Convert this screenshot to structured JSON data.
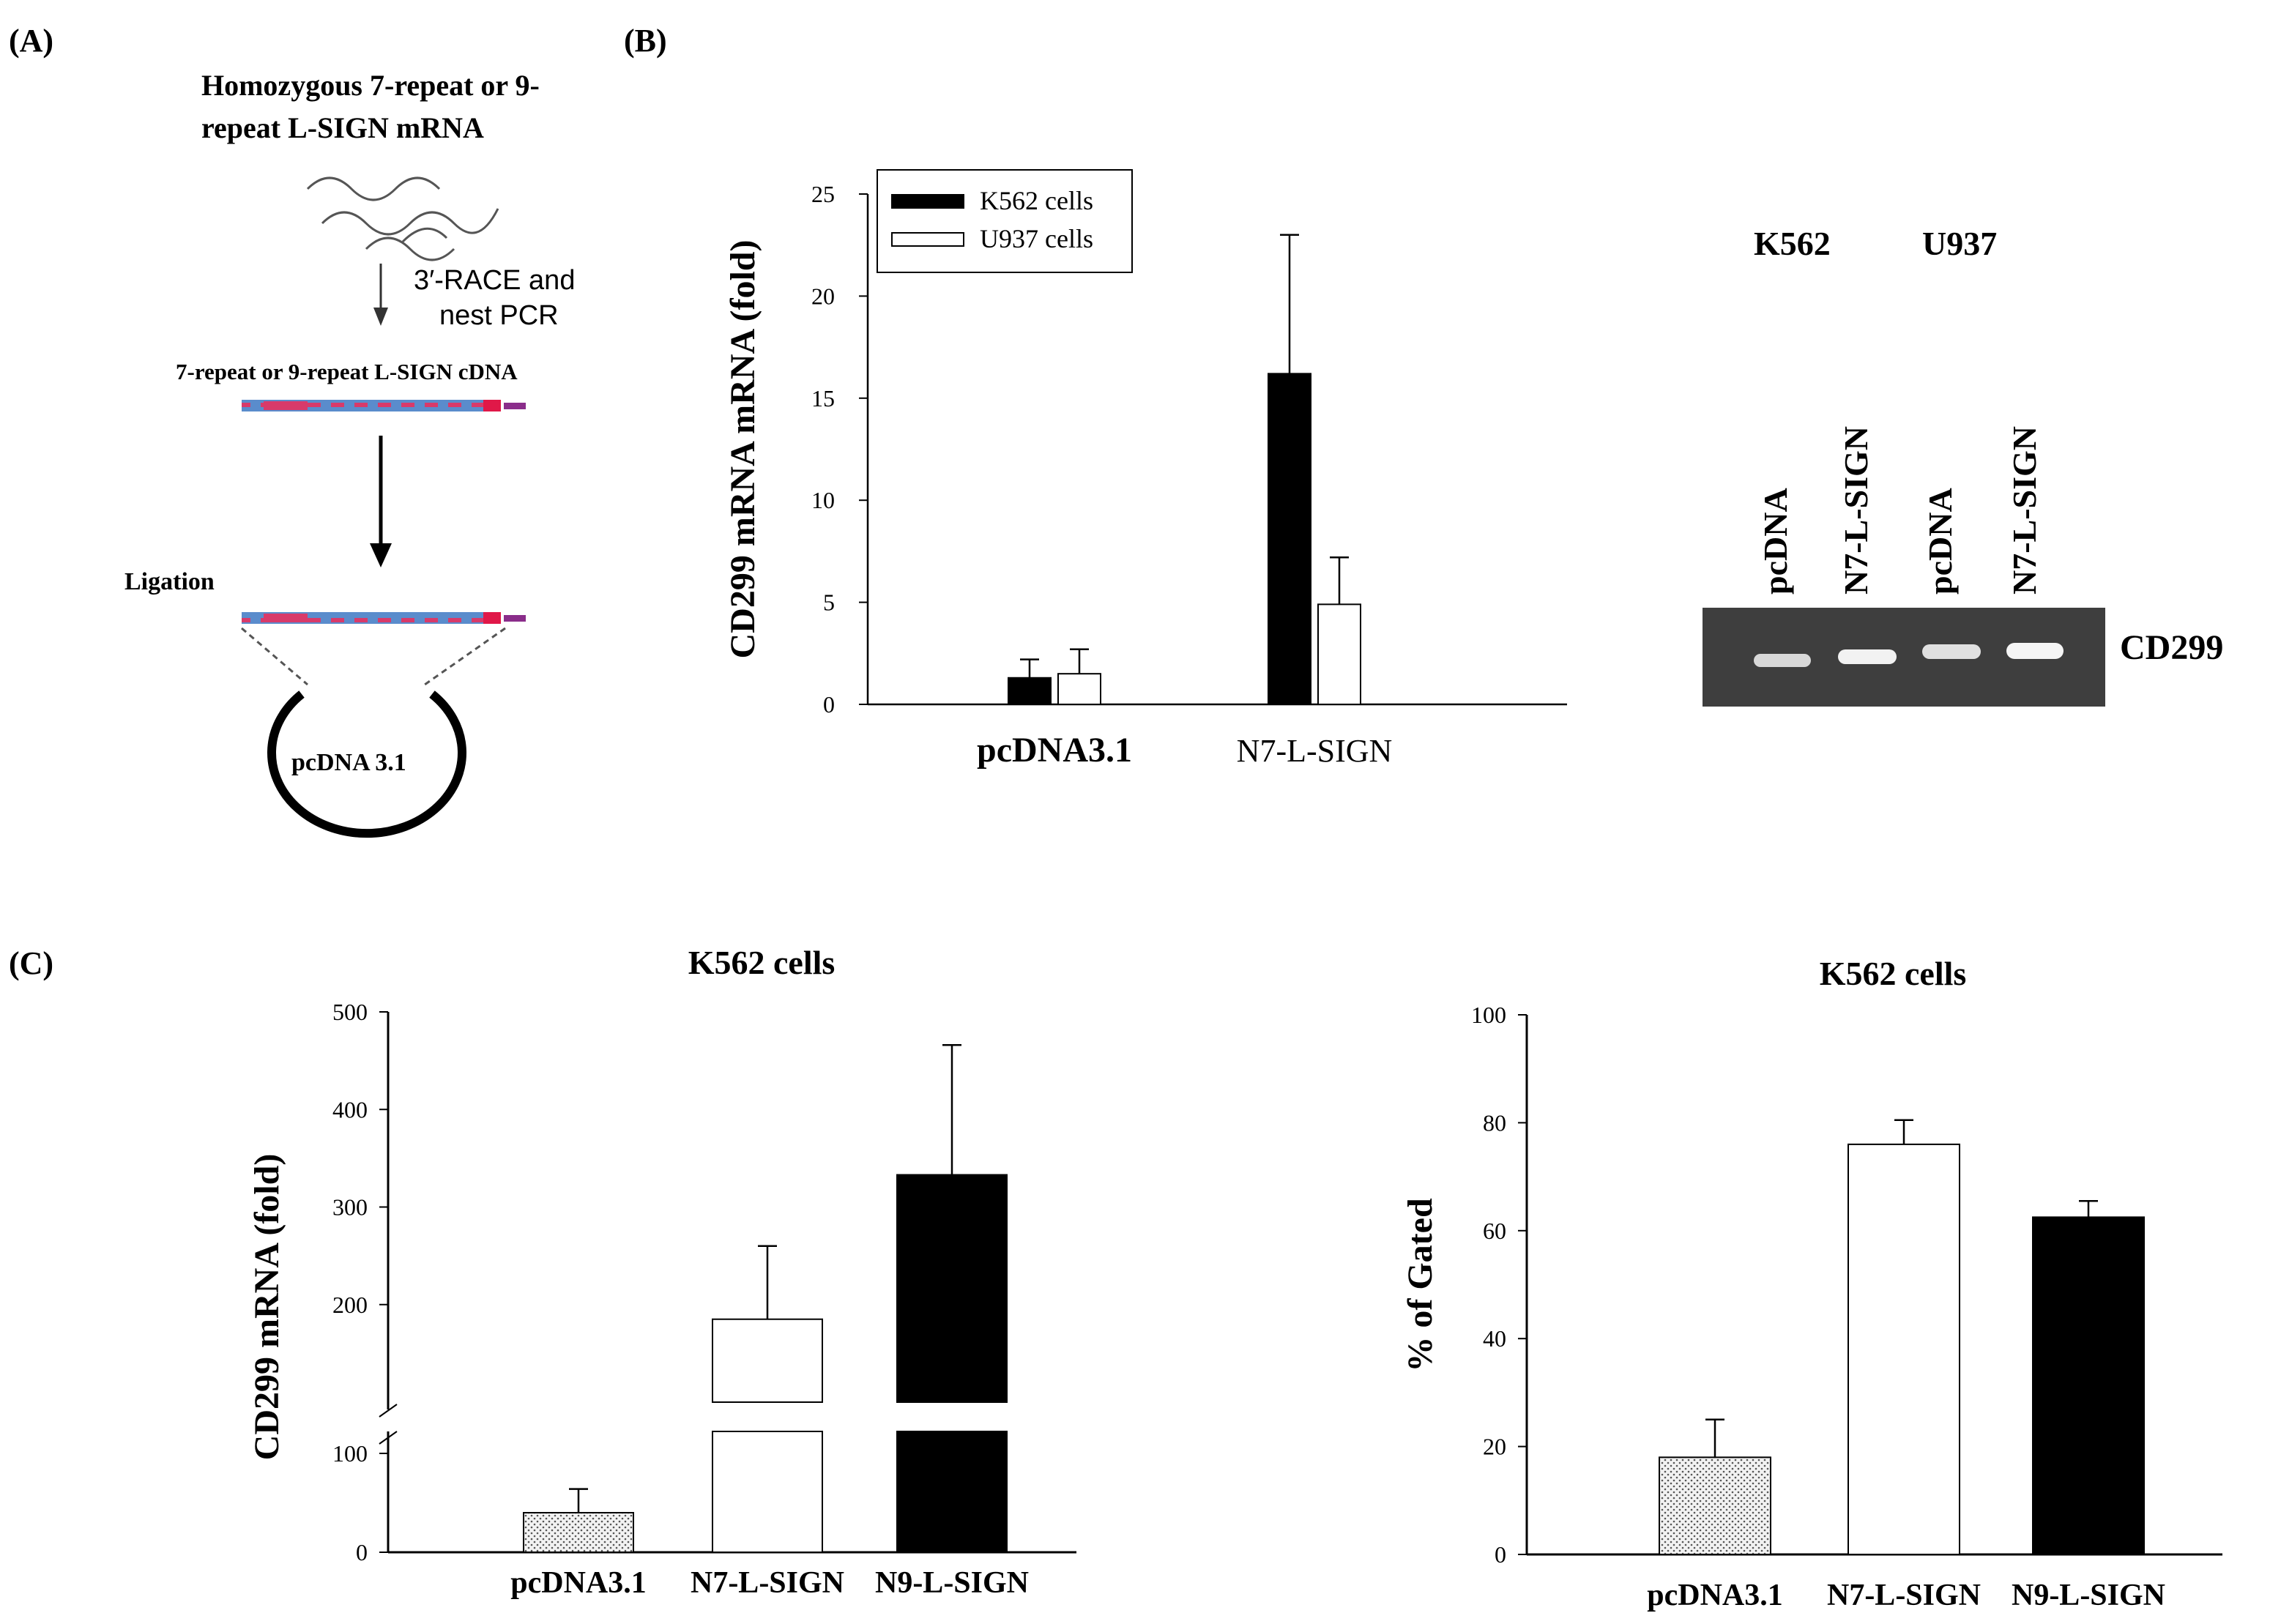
{
  "panel_labels": {
    "a": "(A)",
    "b": "(B)",
    "c": "(C)"
  },
  "schematic": {
    "title_line1": "Homozygous 7-repeat or 9-",
    "title_line2": "repeat L-SIGN mRNA",
    "step1_line1": "3′-RACE and",
    "step1_line2": "nest PCR",
    "cdna_label": "7-repeat or 9-repeat L-SIGN cDNA",
    "ligation_label": "Ligation",
    "vector_label": "pcDNA 3.1"
  },
  "gel": {
    "header_k562": "K562",
    "header_u937": "U937",
    "lanes": [
      "pcDNA",
      "N7-L-SIGN",
      "pcDNA",
      "N7-L-SIGN"
    ],
    "band_label": "CD299"
  },
  "chart_data": [
    {
      "id": "B",
      "type": "bar",
      "title": "",
      "ylabel": "CD299 mRNA mRNA (fold)",
      "xlabel": "",
      "categories": [
        "pcDNA3.1",
        "N7-L-SIGN"
      ],
      "ylim": [
        0,
        25
      ],
      "yticks": [
        0,
        5,
        10,
        15,
        20,
        25
      ],
      "legend_position": "top-left",
      "series": [
        {
          "name": "K562 cells",
          "fill": "#000000",
          "values": [
            1.3,
            16.2
          ],
          "errors": [
            0.9,
            6.8
          ]
        },
        {
          "name": "U937 cells",
          "fill": "#ffffff",
          "values": [
            1.5,
            4.9
          ],
          "errors": [
            1.2,
            2.3
          ]
        }
      ]
    },
    {
      "id": "C-left",
      "type": "bar",
      "title": "K562 cells",
      "ylabel": "CD299 mRNA (fold)",
      "xlabel": "",
      "categories": [
        "pcDNA3.1",
        "N7-L-SIGN",
        "N9-L-SIGN"
      ],
      "axis_break": true,
      "yticks": [
        0,
        100,
        200,
        300,
        400,
        500
      ],
      "ylim": [
        0,
        500
      ],
      "values": [
        20,
        185,
        333
      ],
      "errors": [
        12,
        75,
        133
      ],
      "fills": [
        "#dcdcdc",
        "#ffffff",
        "#000000"
      ]
    },
    {
      "id": "C-right",
      "type": "bar",
      "title": "K562 cells",
      "ylabel": "% of Gated",
      "xlabel": "",
      "categories": [
        "pcDNA3.1",
        "N7-L-SIGN",
        "N9-L-SIGN"
      ],
      "ylim": [
        0,
        100
      ],
      "yticks": [
        0,
        20,
        40,
        60,
        80,
        100
      ],
      "values": [
        18,
        76,
        62.5
      ],
      "errors": [
        7,
        4.5,
        3
      ],
      "fills": [
        "#dcdcdc",
        "#ffffff",
        "#000000"
      ]
    }
  ]
}
